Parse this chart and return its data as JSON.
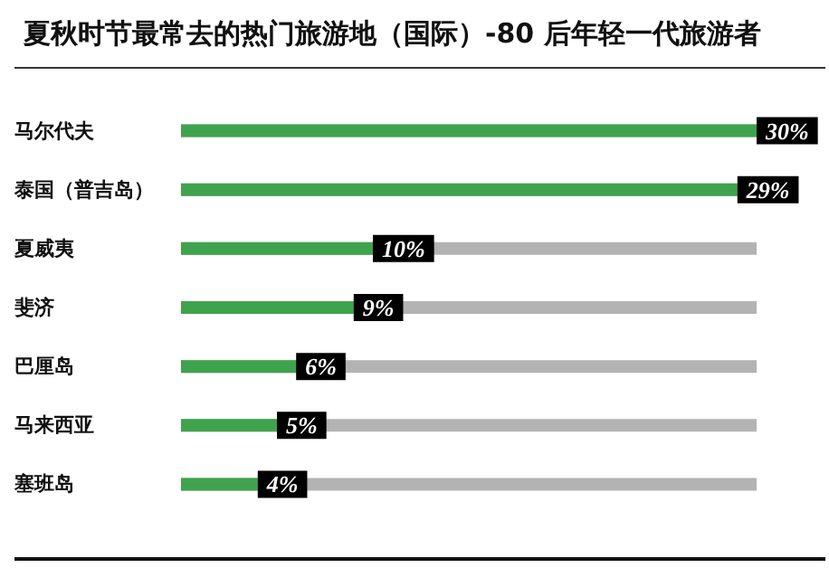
{
  "chart_data": {
    "type": "bar",
    "orientation": "horizontal",
    "title": "夏秋时节最常去的热门旅游地（国际）-80 后年轻一代旅游者",
    "categories": [
      "马尔代夫",
      "泰国（普吉岛）",
      "夏威夷",
      "斐济",
      "巴厘岛",
      "马来西亚",
      "塞班岛"
    ],
    "values": [
      30,
      29,
      10,
      9,
      6,
      5,
      4
    ],
    "value_labels": [
      "30%",
      "29%",
      "10%",
      "9%",
      "6%",
      "5%",
      "4%"
    ],
    "color": "#3fa34d",
    "grid": false,
    "tick_labels": "y"
  }
}
